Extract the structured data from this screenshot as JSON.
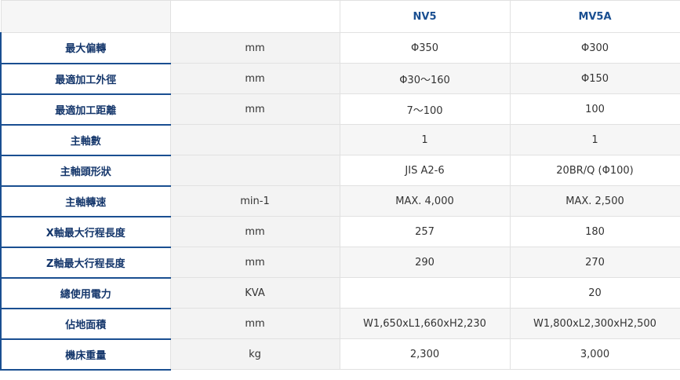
{
  "table": {
    "headers": [
      "",
      "",
      "NV5",
      "MV5A"
    ],
    "rows": [
      {
        "label": "最大偏轉",
        "unit": "mm",
        "nv5": "Φ350",
        "mv5a": "Φ300"
      },
      {
        "label": "最適加工外徑",
        "unit": "mm",
        "nv5": "Φ30～160",
        "mv5a": "Φ150"
      },
      {
        "label": "最適加工距離",
        "unit": "mm",
        "nv5": "7～100",
        "mv5a": "100"
      },
      {
        "label": "主軸數",
        "unit": "",
        "nv5": "1",
        "mv5a": "1"
      },
      {
        "label": "主軸頭形狀",
        "unit": "",
        "nv5": "JIS A2-6",
        "mv5a": "20BR/Q (Φ100)"
      },
      {
        "label": "主軸轉速",
        "unit": "min-1",
        "nv5": "MAX. 4,000",
        "mv5a": "MAX. 2,500"
      },
      {
        "label": "X軸最大行程長度",
        "unit": "mm",
        "nv5": "257",
        "mv5a": "180"
      },
      {
        "label": "Z軸最大行程長度",
        "unit": "mm",
        "nv5": "290",
        "mv5a": "270"
      },
      {
        "label": "總使用電力",
        "unit": "KVA",
        "nv5": "",
        "mv5a": "20"
      },
      {
        "label": "佔地面積",
        "unit": "mm",
        "nv5": "W1,650xL1,660xH2,230",
        "mv5a": "W1,800xL2,300xH2,500"
      },
      {
        "label": "機床重量",
        "unit": "kg",
        "nv5": "2,300",
        "mv5a": "3,000"
      }
    ]
  },
  "colors": {
    "accent": "#1a4f91",
    "label_text": "#14366b",
    "unit_bg": "#f3f3f3",
    "border": "#e1e1e1"
  }
}
